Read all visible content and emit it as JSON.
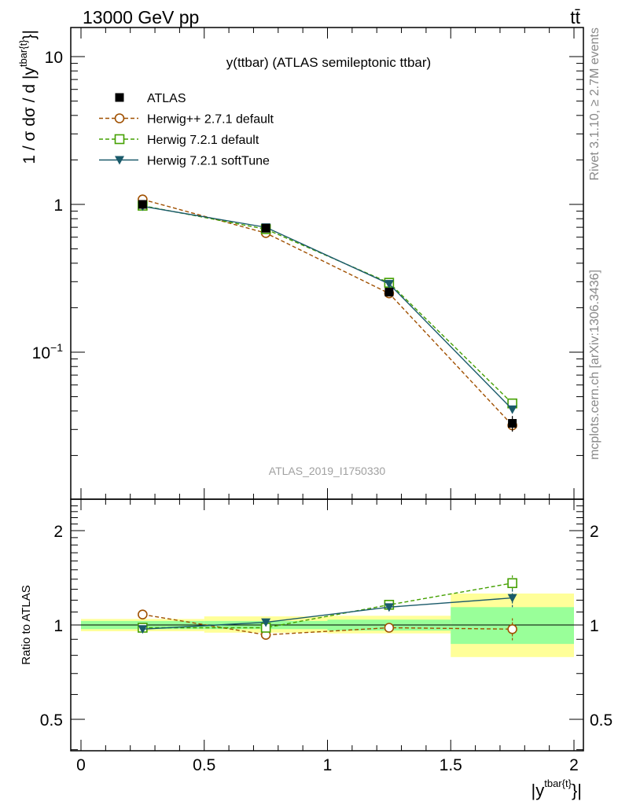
{
  "header": {
    "left": "13000 GeV pp",
    "right": "tt̄"
  },
  "side_text": {
    "rivet": "Rivet 3.1.10, ≥ 2.7M events",
    "mcplots": "mcplots.cern.ch [arXiv:1306.3436]"
  },
  "watermark": "ATLAS_2019_I1750330",
  "chart_data": {
    "type": "line",
    "title": "y(ttbar) (ATLAS semileptonic ttbar)",
    "xlabel": "|y^{tbar{t}}|",
    "ylabel": "1 / σ dσ / d |y^{tbar{t}}|",
    "xlim": [
      0,
      2
    ],
    "ylim": [
      0.013,
      16
    ],
    "yscale": "log",
    "legend_position": "top-left",
    "x_ticks": [
      "0",
      "0.5",
      "1",
      "1.5",
      "2"
    ],
    "y_ticks": [
      "10",
      "1",
      "10^-1"
    ],
    "bins": [
      [
        0,
        0.5
      ],
      [
        0.5,
        1.0
      ],
      [
        1.0,
        1.5
      ],
      [
        1.5,
        2.0
      ]
    ],
    "x": [
      0.25,
      0.75,
      1.25,
      1.75
    ],
    "series": [
      {
        "name": "ATLAS",
        "values": [
          1.0,
          0.69,
          0.255,
          0.033
        ],
        "errors": [
          0.03,
          0.02,
          0.01,
          0.004
        ],
        "color": "#000000",
        "marker": "square-filled",
        "line": "none"
      },
      {
        "name": "Herwig++ 2.7.1 default",
        "values": [
          1.08,
          0.64,
          0.25,
          0.032
        ],
        "color": "#a05000",
        "marker": "circle-open",
        "line": "dashed"
      },
      {
        "name": "Herwig 7.2.1 default",
        "values": [
          0.98,
          0.68,
          0.295,
          0.045
        ],
        "color": "#44a000",
        "marker": "square-open",
        "line": "dashed"
      },
      {
        "name": "Herwig 7.2.1 softTune",
        "values": [
          0.97,
          0.7,
          0.29,
          0.041
        ],
        "color": "#1a5a6a",
        "marker": "triangle-down-filled",
        "line": "solid"
      }
    ],
    "ratio": {
      "ylabel": "Ratio to ATLAS",
      "ylim": [
        0.4,
        2.4
      ],
      "y_ticks": [
        "2",
        "1",
        "0.5"
      ],
      "band_inner": [
        [
          0.97,
          1.03
        ],
        [
          0.97,
          1.03
        ],
        [
          0.96,
          1.04
        ],
        [
          0.87,
          1.14
        ]
      ],
      "band_outer": [
        [
          0.955,
          1.045
        ],
        [
          0.945,
          1.065
        ],
        [
          0.94,
          1.07
        ],
        [
          0.79,
          1.26
        ]
      ],
      "series": [
        {
          "name": "Herwig++ 2.7.1 default",
          "values": [
            1.08,
            0.93,
            0.98,
            0.97
          ],
          "errors": [
            0.0,
            0.0,
            0.02,
            0.08
          ]
        },
        {
          "name": "Herwig 7.2.1 default",
          "values": [
            0.98,
            0.98,
            1.16,
            1.36
          ],
          "errors": [
            0.0,
            0.0,
            0.02,
            0.08
          ]
        },
        {
          "name": "Herwig 7.2.1 softTune",
          "values": [
            0.97,
            1.02,
            1.14,
            1.22
          ],
          "errors": [
            0.0,
            0.0,
            0.02,
            0.08
          ]
        }
      ]
    }
  }
}
